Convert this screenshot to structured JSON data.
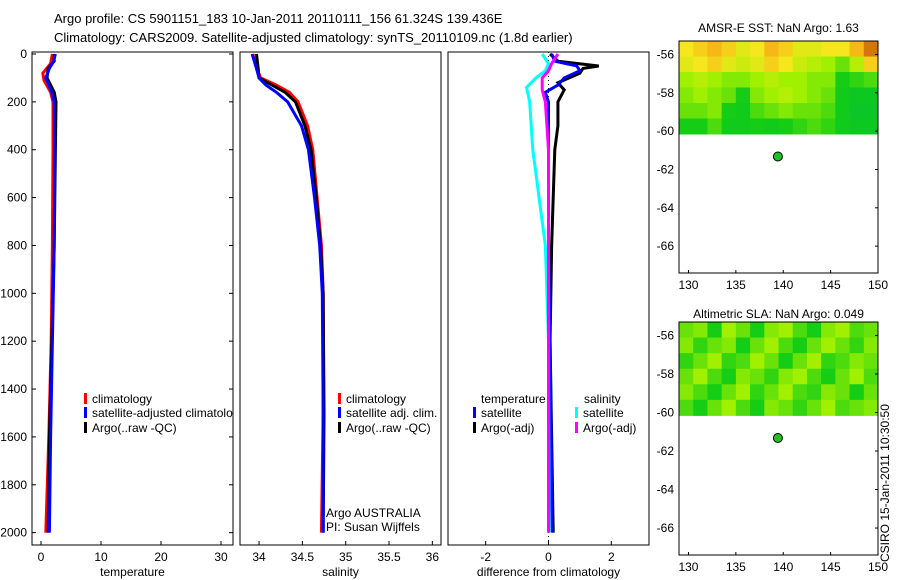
{
  "title_line1": "Argo profile: CS 5901151_183 10-Jan-2011 20110111_156 61.324S 139.436E",
  "title_line2": "Climatology: CARS2009. Satellite-adjusted climatology: synTS_20110109.nc (1.8d earlier)",
  "footer_stamp": "CSIRO 15-Jan-2011 10:30:50",
  "colors": {
    "climatology": "#ff0000",
    "satellite": "#0000ff",
    "argo": "#000000",
    "sal_satellite": "#00ffff",
    "sal_argo": "#ff00ff"
  },
  "chart_data": [
    {
      "type": "line",
      "xlabel": "temperature",
      "xlim": [
        -1.5,
        32
      ],
      "xticks": [
        "0",
        "10",
        "20",
        "30"
      ],
      "xtick_values": [
        0,
        10,
        20,
        30
      ],
      "ylim": [
        0,
        2060
      ],
      "yticks": [
        "0",
        "200",
        "400",
        "600",
        "800",
        "1000",
        "1200",
        "1400",
        "1600",
        "1800",
        "2000"
      ],
      "ytick_values": [
        0,
        200,
        400,
        600,
        800,
        1000,
        1200,
        1400,
        1600,
        1800,
        2000
      ],
      "legend": [
        "climatology",
        "satellite-adjusted climatolo",
        "Argo(..raw -QC)"
      ],
      "series": [
        {
          "name": "climatology",
          "color": "#ff0000",
          "depth": [
            0,
            40,
            80,
            110,
            160,
            200,
            400,
            800,
            1200,
            1600,
            2000
          ],
          "values": [
            1.9,
            1.6,
            0.3,
            0.5,
            1.6,
            2.0,
            2.0,
            1.9,
            1.7,
            1.3,
            0.8
          ]
        },
        {
          "name": "Argo",
          "color": "#000000",
          "depth": [
            0,
            30,
            60,
            100,
            160,
            200,
            400,
            800,
            1200,
            1600,
            2000
          ],
          "values": [
            2.2,
            2.2,
            1.2,
            1.0,
            2.2,
            2.5,
            2.4,
            2.2,
            1.8,
            1.4,
            1.2
          ]
        },
        {
          "name": "satellite-adjusted",
          "color": "#0000ff",
          "depth": [
            0,
            30,
            60,
            100,
            160,
            200,
            400,
            800,
            1200,
            1600,
            2000
          ],
          "values": [
            2.4,
            2.1,
            1.4,
            0.8,
            1.8,
            2.2,
            2.3,
            2.2,
            1.9,
            1.6,
            1.4
          ]
        }
      ]
    },
    {
      "type": "line",
      "xlabel": "salinity",
      "xlim": [
        33.78,
        36.1
      ],
      "xticks": [
        "34",
        "34.5",
        "35",
        "35.5",
        "36"
      ],
      "xtick_values": [
        34,
        34.5,
        35,
        35.5,
        36
      ],
      "ylim": [
        0,
        2060
      ],
      "legend": [
        "climatology",
        "satellite adj. clim.",
        "Argo(..raw -QC)"
      ],
      "annotation": [
        "Argo AUSTRALIA",
        "PI: Susan Wijffels"
      ],
      "series": [
        {
          "name": "climatology",
          "color": "#ff0000",
          "depth": [
            0,
            60,
            100,
            130,
            160,
            200,
            300,
            400,
            600,
            800,
            1000,
            1500,
            2000
          ],
          "values": [
            33.93,
            33.97,
            34.02,
            34.2,
            34.35,
            34.45,
            34.56,
            34.62,
            34.67,
            34.72,
            34.74,
            34.74,
            34.72
          ]
        },
        {
          "name": "Argo",
          "color": "#000000",
          "depth": [
            0,
            60,
            100,
            130,
            160,
            200,
            300,
            400,
            600,
            800,
            1000,
            1500,
            2000
          ],
          "values": [
            33.97,
            33.99,
            34.0,
            34.15,
            34.3,
            34.42,
            34.53,
            34.6,
            34.66,
            34.71,
            34.74,
            34.75,
            34.74
          ]
        },
        {
          "name": "satellite adj.",
          "color": "#0000ff",
          "depth": [
            0,
            60,
            100,
            130,
            160,
            200,
            300,
            400,
            600,
            800,
            1000,
            1500,
            2000
          ],
          "values": [
            33.92,
            33.97,
            34.0,
            34.08,
            34.2,
            34.33,
            34.49,
            34.57,
            34.64,
            34.7,
            34.73,
            34.74,
            34.74
          ]
        }
      ]
    },
    {
      "type": "line",
      "xlabel": "difference from climatology",
      "xlim": [
        -3.2,
        3.2
      ],
      "xticks": [
        "-2",
        "0",
        "2"
      ],
      "xtick_values": [
        -2,
        0,
        2
      ],
      "ylim": [
        0,
        2060
      ],
      "legend_temperature_title": "temperature",
      "legend_salinity_title": "salinity",
      "legend": [
        "satellite",
        "Argo(-adj)",
        "satellite",
        "Argo(-adj)"
      ],
      "series": [
        {
          "name": "temperature Argo(-adj)",
          "color": "#000000",
          "depth": [
            0,
            30,
            50,
            60,
            80,
            120,
            150,
            200,
            300,
            400,
            800,
            1200,
            2000
          ],
          "values": [
            0.05,
            0.3,
            1.6,
            1.1,
            1.0,
            0.3,
            0.5,
            0.3,
            0.3,
            0.2,
            0.1,
            0.05,
            0.15
          ]
        },
        {
          "name": "temperature satellite",
          "color": "#0000ff",
          "depth": [
            0,
            30,
            50,
            70,
            100,
            130,
            160,
            200,
            400,
            800,
            1200,
            2000
          ],
          "values": [
            0.1,
            0.2,
            0.9,
            1.0,
            0.5,
            0.3,
            -0.1,
            0.0,
            0.0,
            0.0,
            0.05,
            0.12
          ]
        },
        {
          "name": "salinity satellite",
          "color": "#00ffff",
          "depth": [
            0,
            40,
            70,
            100,
            140,
            200,
            400,
            600,
            800,
            1200,
            2000
          ],
          "values": [
            -0.2,
            0.0,
            -0.1,
            -0.4,
            -0.7,
            -0.6,
            -0.5,
            -0.3,
            -0.1,
            0.0,
            0.02
          ]
        },
        {
          "name": "salinity Argo(-adj)",
          "color": "#ff00ff",
          "depth": [
            0,
            40,
            70,
            100,
            150,
            200,
            400,
            800,
            1200,
            2000
          ],
          "values": [
            0.3,
            0.1,
            0.0,
            -0.2,
            -0.2,
            -0.1,
            0.0,
            0.0,
            0.0,
            0.0
          ]
        }
      ]
    },
    {
      "type": "heatmap",
      "title": "AMSR-E SST: NaN Argo: 1.63",
      "xlim": [
        129,
        150
      ],
      "ylim": [
        -67.4,
        -55.3
      ],
      "xticks": [
        "130",
        "135",
        "140",
        "145",
        "150"
      ],
      "xtick_values": [
        130,
        135,
        140,
        145,
        150
      ],
      "yticks": [
        "-56",
        "-58",
        "-60",
        "-62",
        "-64",
        "-66"
      ],
      "ytick_values": [
        -56,
        -58,
        -60,
        -62,
        -64,
        -66
      ],
      "data_lat_range": [
        -60.15,
        -55.3
      ],
      "grid": [
        [
          0.75,
          0.8,
          0.85,
          0.8,
          0.7,
          0.75,
          0.85,
          0.8,
          0.7,
          0.7,
          0.75,
          0.75,
          0.85,
          0.95
        ],
        [
          0.7,
          0.75,
          0.8,
          0.7,
          0.65,
          0.7,
          0.8,
          0.75,
          0.65,
          0.6,
          0.55,
          0.45,
          0.6,
          0.8
        ],
        [
          0.55,
          0.6,
          0.55,
          0.5,
          0.5,
          0.55,
          0.6,
          0.55,
          0.55,
          0.5,
          0.5,
          0.3,
          0.35,
          0.4
        ],
        [
          0.5,
          0.55,
          0.5,
          0.45,
          0.3,
          0.5,
          0.55,
          0.6,
          0.55,
          0.5,
          0.45,
          0.25,
          0.2,
          0.2
        ],
        [
          0.45,
          0.45,
          0.5,
          0.3,
          0.25,
          0.4,
          0.45,
          0.5,
          0.45,
          0.45,
          0.4,
          0.25,
          0.15,
          0.15
        ],
        [
          0.3,
          0.3,
          0.4,
          0.25,
          0.25,
          0.3,
          0.25,
          0.3,
          0.35,
          0.4,
          0.35,
          0.25,
          0.2,
          0.2
        ]
      ],
      "marker": {
        "lon": 139.436,
        "lat": -61.324
      }
    },
    {
      "type": "heatmap",
      "title": "Altimetric SLA: NaN Argo: 0.049",
      "xlim": [
        129,
        150
      ],
      "ylim": [
        -67.4,
        -55.3
      ],
      "xticks": [
        "130",
        "135",
        "140",
        "145",
        "150"
      ],
      "xtick_values": [
        130,
        135,
        140,
        145,
        150
      ],
      "yticks": [
        "-56",
        "-58",
        "-60",
        "-62",
        "-64",
        "-66"
      ],
      "ytick_values": [
        -56,
        -58,
        -60,
        -62,
        -64,
        -66
      ],
      "data_lat_range": [
        -60.15,
        -55.3
      ],
      "grid": [
        [
          0.45,
          0.5,
          0.3,
          0.55,
          0.45,
          0.3,
          0.5,
          0.55,
          0.4,
          0.3,
          0.5,
          0.55,
          0.4,
          0.45
        ],
        [
          0.5,
          0.35,
          0.45,
          0.5,
          0.3,
          0.45,
          0.55,
          0.4,
          0.3,
          0.45,
          0.55,
          0.45,
          0.35,
          0.5
        ],
        [
          0.35,
          0.45,
          0.55,
          0.35,
          0.4,
          0.55,
          0.45,
          0.3,
          0.45,
          0.55,
          0.35,
          0.4,
          0.5,
          0.45
        ],
        [
          0.45,
          0.55,
          0.4,
          0.3,
          0.5,
          0.45,
          0.35,
          0.5,
          0.55,
          0.4,
          0.3,
          0.45,
          0.55,
          0.4
        ],
        [
          0.5,
          0.4,
          0.3,
          0.45,
          0.55,
          0.35,
          0.45,
          0.55,
          0.4,
          0.35,
          0.5,
          0.45,
          0.3,
          0.45
        ],
        [
          0.4,
          0.3,
          0.45,
          0.55,
          0.4,
          0.3,
          0.5,
          0.45,
          0.35,
          0.45,
          0.55,
          0.4,
          0.45,
          0.5
        ]
      ],
      "marker": {
        "lon": 139.436,
        "lat": -61.324
      }
    }
  ]
}
